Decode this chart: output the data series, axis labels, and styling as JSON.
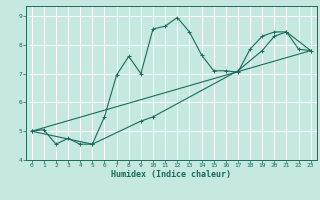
{
  "xlabel": "Humidex (Indice chaleur)",
  "ylabel": "",
  "bg_color": "#c5e8e0",
  "grid_color": "#ffffff",
  "line_color": "#1a6b5a",
  "xlim": [
    -0.5,
    23.5
  ],
  "ylim": [
    4.0,
    9.35
  ],
  "xticks": [
    0,
    1,
    2,
    3,
    4,
    5,
    6,
    7,
    8,
    9,
    10,
    11,
    12,
    13,
    14,
    15,
    16,
    17,
    18,
    19,
    20,
    21,
    22,
    23
  ],
  "yticks": [
    4,
    5,
    6,
    7,
    8,
    9
  ],
  "curve1_x": [
    0,
    1,
    2,
    3,
    4,
    5,
    6,
    7,
    8,
    9,
    10,
    11,
    12,
    13,
    14,
    15,
    16,
    17,
    18,
    19,
    20,
    21,
    22,
    23
  ],
  "curve1_y": [
    5.0,
    5.05,
    4.55,
    4.75,
    4.55,
    4.55,
    5.5,
    6.95,
    7.6,
    7.0,
    8.55,
    8.65,
    8.95,
    8.45,
    7.65,
    7.1,
    7.1,
    7.05,
    7.85,
    8.3,
    8.45,
    8.45,
    7.85,
    7.8
  ],
  "curve2_x": [
    0,
    5,
    9,
    10,
    17,
    19,
    20,
    21,
    23
  ],
  "curve2_y": [
    5.0,
    4.55,
    5.35,
    5.5,
    7.1,
    7.8,
    8.3,
    8.45,
    7.8
  ],
  "curve3_x": [
    0,
    23
  ],
  "curve3_y": [
    5.0,
    7.8
  ]
}
